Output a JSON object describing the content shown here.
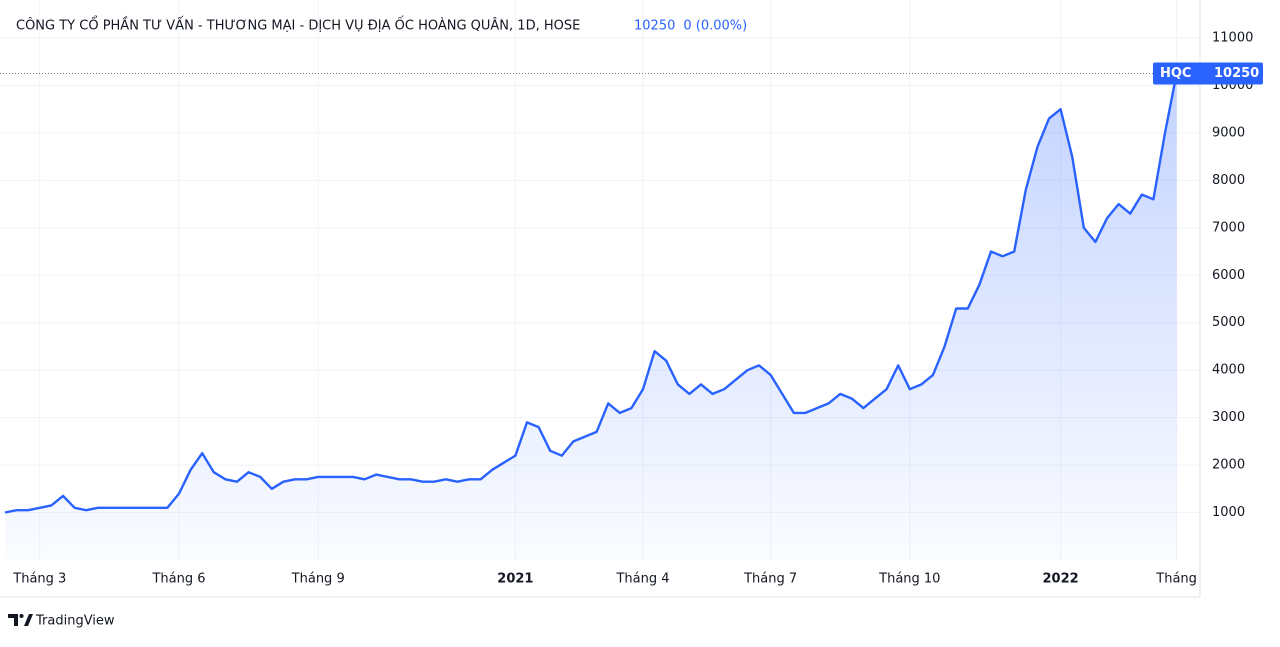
{
  "chart_data": {
    "type": "area",
    "title": "CÔNG TY CỔ PHẦN TƯ VẤN - THƯƠNG MẠI - DỊCH VỤ ĐỊA ỐC HOÀNG QUÂN, 1D, HOSE",
    "last_price": 10250,
    "change": "0 (0.00%)",
    "brand": "TradingView",
    "categories": [
      null,
      null,
      null,
      "Tháng 3",
      null,
      null,
      null,
      null,
      null,
      null,
      null,
      null,
      null,
      null,
      null,
      "Tháng 6",
      null,
      null,
      null,
      null,
      null,
      null,
      null,
      null,
      null,
      null,
      null,
      "Tháng 9",
      null,
      null,
      null,
      null,
      null,
      null,
      null,
      null,
      null,
      null,
      null,
      null,
      null,
      null,
      null,
      null,
      "2021",
      null,
      null,
      null,
      null,
      null,
      null,
      null,
      null,
      null,
      null,
      "Tháng 4",
      null,
      null,
      null,
      null,
      null,
      null,
      null,
      null,
      null,
      null,
      "Tháng 7",
      null,
      null,
      null,
      null,
      null,
      null,
      null,
      null,
      null,
      null,
      null,
      "Tháng 10",
      null,
      null,
      null,
      null,
      null,
      null,
      null,
      null,
      null,
      null,
      null,
      null,
      "2022",
      null,
      null,
      null,
      null,
      null,
      null,
      null,
      null,
      null,
      "Tháng"
    ],
    "series": [
      {
        "name": "HQC",
        "color": "#2962ff",
        "values": [
          1000,
          1050,
          1050,
          1100,
          1150,
          1350,
          1100,
          1050,
          1100,
          1100,
          1100,
          1100,
          1100,
          1100,
          1100,
          1400,
          1900,
          2250,
          1850,
          1700,
          1650,
          1850,
          1750,
          1500,
          1650,
          1700,
          1700,
          1750,
          1750,
          1750,
          1750,
          1700,
          1800,
          1750,
          1700,
          1700,
          1650,
          1650,
          1700,
          1650,
          1700,
          1700,
          1900,
          2050,
          2200,
          2900,
          2800,
          2300,
          2200,
          2500,
          2600,
          2700,
          3300,
          3100,
          3200,
          3600,
          4400,
          4200,
          3700,
          3500,
          3700,
          3500,
          3600,
          3800,
          4000,
          4100,
          3900,
          3500,
          3100,
          3100,
          3200,
          3300,
          3500,
          3400,
          3200,
          3400,
          3600,
          4100,
          3600,
          3700,
          3900,
          4500,
          5300,
          5300,
          5800,
          6500,
          6400,
          6500,
          7800,
          8700,
          9300,
          9500,
          8500,
          7000,
          6700,
          7200,
          7500,
          7300,
          7700,
          7600,
          9000,
          10250
        ]
      }
    ],
    "ylim": [
      0,
      11800
    ],
    "yticks": [
      1000,
      2000,
      3000,
      4000,
      5000,
      6000,
      7000,
      8000,
      9000,
      10000,
      11000
    ],
    "grid": true
  }
}
